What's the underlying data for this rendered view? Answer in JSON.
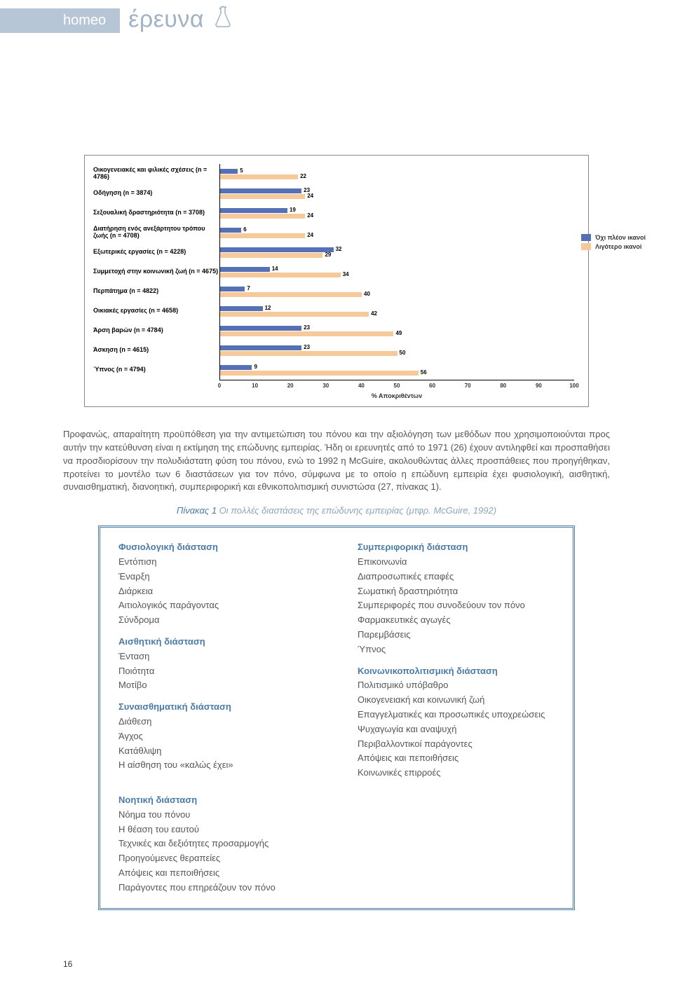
{
  "header": {
    "tab": "homeo",
    "title": "έρευνα"
  },
  "chart": {
    "type": "bar-grouped-horizontal",
    "xlim": [
      0,
      100
    ],
    "xtick_step": 10,
    "xlabel": "% Αποκριθέντων",
    "bar_color_1": "#5670b5",
    "bar_color_2": "#f5c99a",
    "border_color": "#888888",
    "legend": [
      {
        "label": "Όχι πλέον ικανοί",
        "color": "#5670b5"
      },
      {
        "label": "Λιγότερο ικανοί",
        "color": "#f5c99a"
      }
    ],
    "categories": [
      {
        "label": "Οικογενειακές και φιλικές σχέσεις (n = 4786)",
        "v1": 5,
        "v2": 22
      },
      {
        "label": "Οδήγηση (n = 3874)",
        "v1": 23,
        "v2": 24
      },
      {
        "label": "Σεξουαλική δραστηριότητα (n = 3708)",
        "v1": 19,
        "v2": 24
      },
      {
        "label": "Διατήρηση ενός ανεξάρτητου τρόπου ζωής (n = 4708)",
        "v1": 6,
        "v2": 24
      },
      {
        "label": "Εξωτερικές εργασίες (n = 4228)",
        "v1": 32,
        "v2": 29
      },
      {
        "label": "Συμμετοχή στην κοινωνική ζωή (n = 4675)",
        "v1": 14,
        "v2": 34
      },
      {
        "label": "Περπάτημα (n = 4822)",
        "v1": 7,
        "v2": 40
      },
      {
        "label": "Οικιακές εργασίες (n = 4658)",
        "v1": 12,
        "v2": 42
      },
      {
        "label": "Άρση βαρών (n = 4784)",
        "v1": 23,
        "v2": 49
      },
      {
        "label": "Άσκηση (n = 4615)",
        "v1": 23,
        "v2": 50
      },
      {
        "label": "Ύπνος (n = 4794)",
        "v1": 9,
        "v2": 56
      }
    ]
  },
  "paragraph": "Προφανώς, απαραίτητη προϋπόθεση για την αντιμετώπιση του πόνου και την αξιολόγηση των μεθόδων που χρησιμοποιούνται προς αυτήν την κατεύθυνση είναι η εκτίμηση της επώδυνης εμπειρίας. Ήδη οι ερευνητές από το 1971 (26) έχουν αντιληφθεί και προσπαθήσει να προσδιορίσουν την πολυδιάστατη φύση του πόνου, ενώ το 1992 η McGuire, ακολουθώντας άλλες προσπάθειες που προηγήθηκαν, προτείνει το μοντέλο των 6 διαστάσεων για τον πόνο, σύμφωνα με το οποίο η επώδυνη εμπειρία έχει φυσιολογική, αισθητική, συναισθηματική, διανοητική, συμπεριφορική και εθνικοπολιτισμική συνιστώσα (27, πίνακας 1).",
  "table_caption": {
    "lead": "Πίνακας 1",
    "rest": " Οι πολλές διαστάσεις της επώδυνης εμπειρίας (μτφρ. McGuire, 1992)"
  },
  "dimensions": {
    "col1": [
      {
        "head": "Φυσιολογική διάσταση",
        "items": [
          "Εντόπιση",
          "Έναρξη",
          "Διάρκεια",
          "Αιτιολογικός παράγοντας",
          "Σύνδρομα"
        ]
      },
      {
        "head": "Αισθητική διάσταση",
        "items": [
          "Ένταση",
          "Ποιότητα",
          "Μοτίβο"
        ]
      },
      {
        "head": "Συναισθηματική διάσταση",
        "items": [
          "Διάθεση",
          "Άγχος",
          "Κατάθλιψη",
          "Η αίσθηση του «καλώς έχει»"
        ]
      }
    ],
    "col2": [
      {
        "head": "Συμπεριφορική διάσταση",
        "items": [
          "Επικοινωνία",
          "Διαπροσωπικές επαφές",
          "Σωματική δραστηριότητα",
          "Συμπεριφορές που συνοδεύουν τον πόνο",
          "Φαρμακευτικές αγωγές",
          "Παρεμβάσεις",
          "Ύπνος"
        ]
      },
      {
        "head": "Κοινωνικοπολιτισμική διάσταση",
        "items": [
          "Πολιτισμικό υπόβαθρο",
          "Οικογενειακή και κοινωνική ζωή",
          "Επαγγελματικές και προσωπικές υποχρεώσεις",
          "Ψυχαγωγία και αναψυχή",
          "Περιβαλλοντικοί παράγοντες",
          "Απόψεις και πεποιθήσεις",
          "Κοινωνικές επιρροές"
        ]
      }
    ],
    "bottom": {
      "head": "Νοητική διάσταση",
      "items": [
        "Νόημα του πόνου",
        "Η θέαση του εαυτού",
        "Τεχνικές και δεξιότητες προσαρμογής",
        "Προηγούμενες θεραπείες",
        "Απόψεις και πεποιθήσεις",
        "Παράγοντες που επηρεάζουν τον πόνο"
      ]
    }
  },
  "pagenum": "16"
}
